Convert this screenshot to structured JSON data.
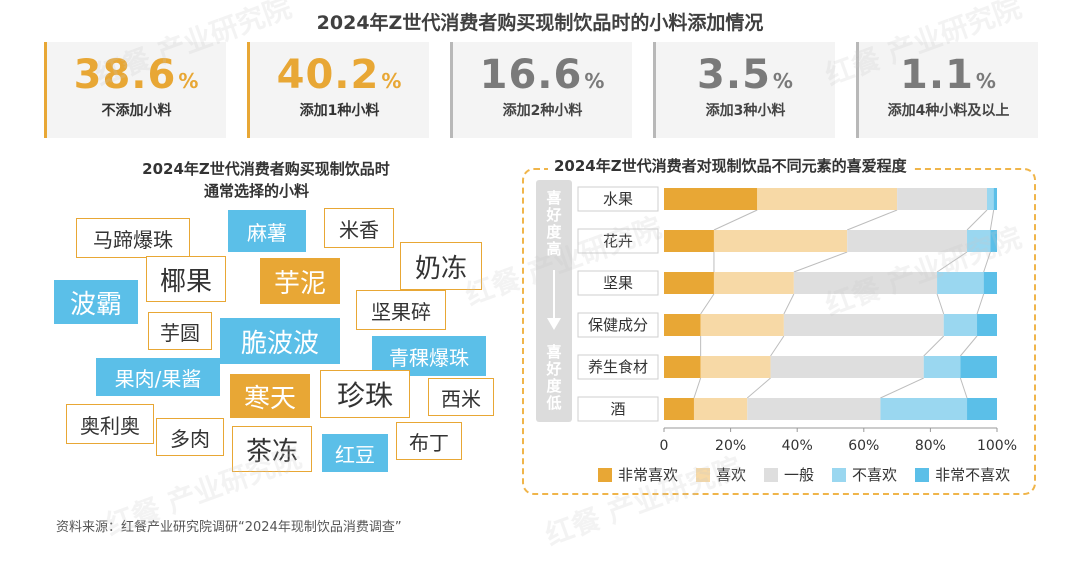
{
  "title": "2024年Z世代消费者购买现制饮品时的小料添加情况",
  "stats": [
    {
      "value": "38.6",
      "unit": "%",
      "label": "不添加小料"
    },
    {
      "value": "40.2",
      "unit": "%",
      "label": "添加1种小料"
    },
    {
      "value": "16.6",
      "unit": "%",
      "label": "添加2种小料"
    },
    {
      "value": "3.5",
      "unit": "%",
      "label": "添加3种小料"
    },
    {
      "value": "1.1",
      "unit": "%",
      "label": "添加4种小料及以上"
    }
  ],
  "left_panel": {
    "title_line1": "2024年Z世代消费者购买现制饮品时",
    "title_line2": "通常选择的小料",
    "tags": [
      {
        "text": "马蹄爆珠",
        "style": "outline"
      },
      {
        "text": "麻薯",
        "style": "blue"
      },
      {
        "text": "米香",
        "style": "outline"
      },
      {
        "text": "奶冻",
        "style": "outline"
      },
      {
        "text": "椰果",
        "style": "outline"
      },
      {
        "text": "芋泥",
        "style": "gold"
      },
      {
        "text": "波霸",
        "style": "blue"
      },
      {
        "text": "坚果碎",
        "style": "outline"
      },
      {
        "text": "芋圆",
        "style": "outline"
      },
      {
        "text": "脆波波",
        "style": "blue"
      },
      {
        "text": "青稞爆珠",
        "style": "blue"
      },
      {
        "text": "果肉/果酱",
        "style": "blue"
      },
      {
        "text": "寒天",
        "style": "gold"
      },
      {
        "text": "珍珠",
        "style": "outline"
      },
      {
        "text": "西米",
        "style": "outline"
      },
      {
        "text": "奥利奥",
        "style": "outline"
      },
      {
        "text": "多肉",
        "style": "outline"
      },
      {
        "text": "茶冻",
        "style": "outline"
      },
      {
        "text": "红豆",
        "style": "blue"
      },
      {
        "text": "布丁",
        "style": "outline"
      }
    ]
  },
  "right_panel": {
    "title": "2024年Z世代消费者对现制饮品不同元素的喜爱程度",
    "axis_top_label": "喜好度高",
    "axis_bottom_label": "喜好度低"
  },
  "chart_data": {
    "type": "bar",
    "orientation": "horizontal",
    "stacked": true,
    "categories": [
      "水果",
      "花卉",
      "坚果",
      "保健成分",
      "养生食材",
      "酒"
    ],
    "series": [
      {
        "name": "非常喜欢",
        "color": "#e8a735",
        "values": [
          28,
          15,
          15,
          11,
          11,
          9
        ]
      },
      {
        "name": "喜欢",
        "color": "#f7d9a6",
        "values": [
          42,
          40,
          24,
          25,
          21,
          16
        ]
      },
      {
        "name": "一般",
        "color": "#dedede",
        "values": [
          27,
          36,
          43,
          48,
          46,
          40
        ]
      },
      {
        "name": "不喜欢",
        "color": "#9ad7f0",
        "values": [
          2,
          7,
          14,
          10,
          11,
          26
        ]
      },
      {
        "name": "非常不喜欢",
        "color": "#5bbfe8",
        "values": [
          1,
          2,
          4,
          6,
          11,
          9
        ]
      }
    ],
    "xlim": [
      0,
      100
    ],
    "xticks": [
      "0",
      "20%",
      "40%",
      "60%",
      "80%",
      "100%"
    ],
    "grid": false,
    "legend_position": "bottom"
  },
  "source": "资料来源：红餐产业研究院调研“2024年现制饮品消费调查”",
  "watermark": "红餐 产业研究院"
}
